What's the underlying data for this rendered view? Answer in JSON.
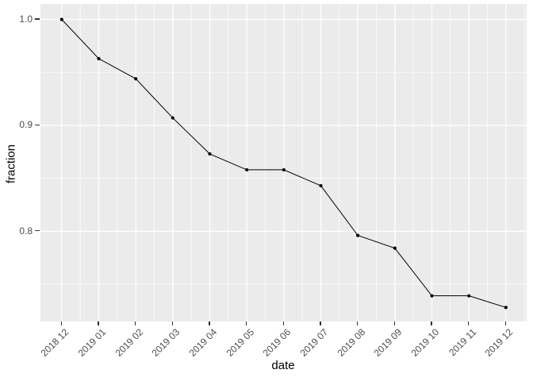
{
  "chart_data": {
    "type": "line",
    "title": "",
    "xlabel": "date",
    "ylabel": "fraction",
    "categories": [
      "2018 12",
      "2019 01",
      "2019 02",
      "2019 03",
      "2019 04",
      "2019 05",
      "2019 06",
      "2019 07",
      "2019 08",
      "2019 09",
      "2019 10",
      "2019 11",
      "2019 12"
    ],
    "series": [
      {
        "name": "fraction",
        "values": [
          1.0,
          0.963,
          0.944,
          0.907,
          0.873,
          0.858,
          0.858,
          0.843,
          0.796,
          0.784,
          0.739,
          0.739,
          0.728
        ]
      }
    ],
    "y_major_ticks": [
      0.8,
      0.9,
      1.0
    ],
    "y_major_tick_labels": [
      "0.8",
      "0.9",
      "1.0"
    ],
    "y_minor_ticks": [
      0.75,
      0.85,
      0.95
    ],
    "ylim": [
      0.714,
      1.015
    ],
    "grid": "major-and-minor",
    "legend_position": "none",
    "style": "ggplot2-theme-gray",
    "marker": "point",
    "colors": {
      "page_background": "#ffffff",
      "panel_background": "#ebebeb",
      "grid_major": "#ffffff",
      "grid_minor": "#ffffff",
      "line": "#000000",
      "point": "#000000",
      "tick_label": "#4d4d4d",
      "axis_title": "#000000",
      "tick_mark": "#333333"
    }
  }
}
